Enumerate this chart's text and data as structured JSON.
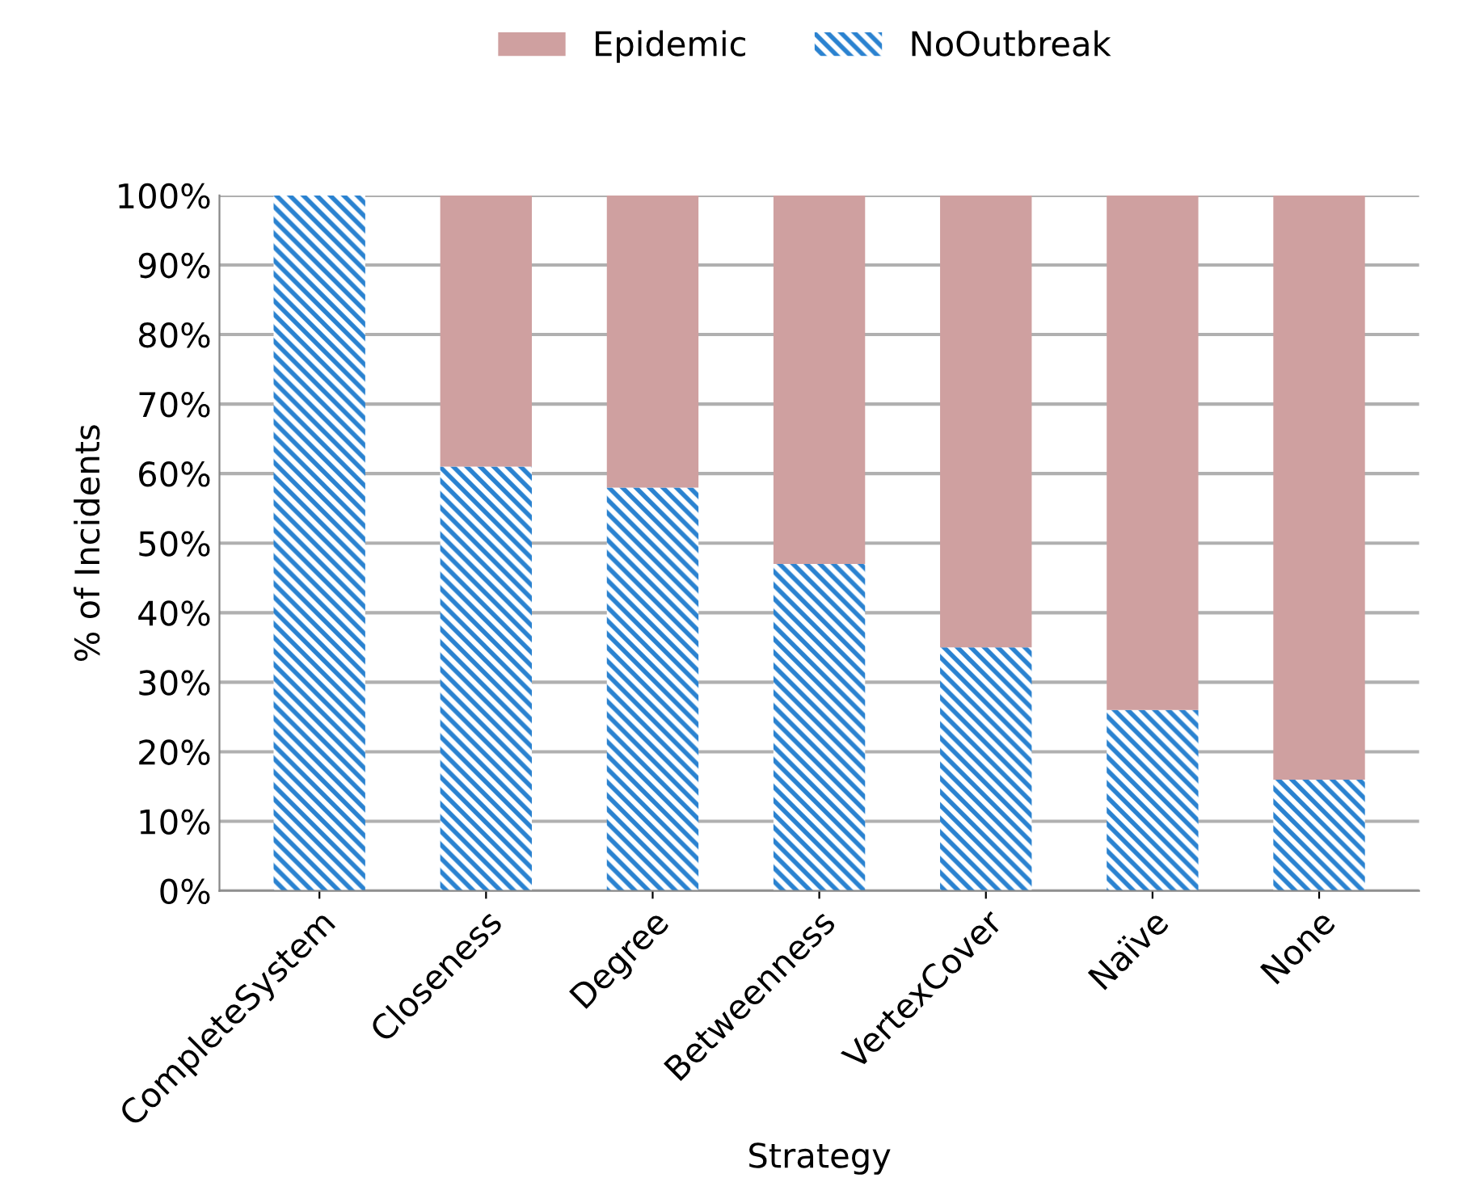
{
  "chart_data": {
    "type": "bar",
    "stacked": true,
    "xlabel": "Strategy",
    "ylabel": "% of Incidents",
    "categories": [
      "CompleteSystem",
      "Closeness",
      "Degree",
      "Betweenness",
      "VertexCover",
      "Naïve",
      "None"
    ],
    "series": [
      {
        "name": "NoOutbreak",
        "color": "#2a82d0",
        "values": [
          100,
          61,
          58,
          47,
          35,
          26,
          16
        ]
      },
      {
        "name": "Epidemic",
        "color": "#cfa0a0",
        "values": [
          0,
          39,
          42,
          53,
          65,
          74,
          84
        ]
      }
    ],
    "ylim": [
      0,
      100
    ],
    "yticks": [
      {
        "value": 0,
        "label": "0%"
      },
      {
        "value": 10,
        "label": "10%"
      },
      {
        "value": 20,
        "label": "20%"
      },
      {
        "value": 30,
        "label": "30%"
      },
      {
        "value": 40,
        "label": "40%"
      },
      {
        "value": 50,
        "label": "50%"
      },
      {
        "value": 60,
        "label": "60%"
      },
      {
        "value": 70,
        "label": "70%"
      },
      {
        "value": 80,
        "label": "80%"
      },
      {
        "value": 90,
        "label": "90%"
      },
      {
        "value": 100,
        "label": "100%"
      }
    ],
    "grid": "y",
    "legend": "top"
  }
}
